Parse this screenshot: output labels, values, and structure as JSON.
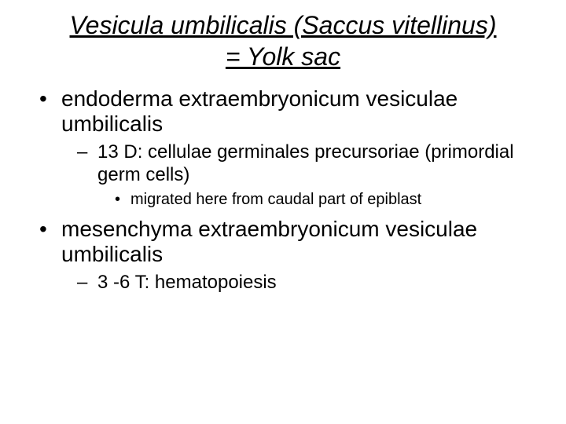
{
  "title": {
    "line1": "Vesicula umbilicalis (Saccus vitellinus)",
    "line2": "= Yolk sac"
  },
  "bullets": [
    {
      "text": "endoderma extraembryonicum vesiculae umbilicalis",
      "children": [
        {
          "text": "13 D: cellulae germinales precursoriae (primordial germ cells)",
          "children": [
            {
              "text": "migrated here from caudal part of epiblast"
            }
          ]
        }
      ]
    },
    {
      "text": "mesenchyma extraembryonicum vesiculae umbilicalis",
      "children": [
        {
          "text": "3 -6 T: hematopoiesis"
        }
      ]
    }
  ],
  "style": {
    "background_color": "#ffffff",
    "text_color": "#000000",
    "title_fontsize": 32,
    "title_italic": true,
    "title_underline": true,
    "l1_fontsize": 28,
    "l2_fontsize": 24,
    "l3_fontsize": 20,
    "bullet_l1": "•",
    "bullet_l2": "–",
    "bullet_l3": "•",
    "font_family": "Arial"
  }
}
